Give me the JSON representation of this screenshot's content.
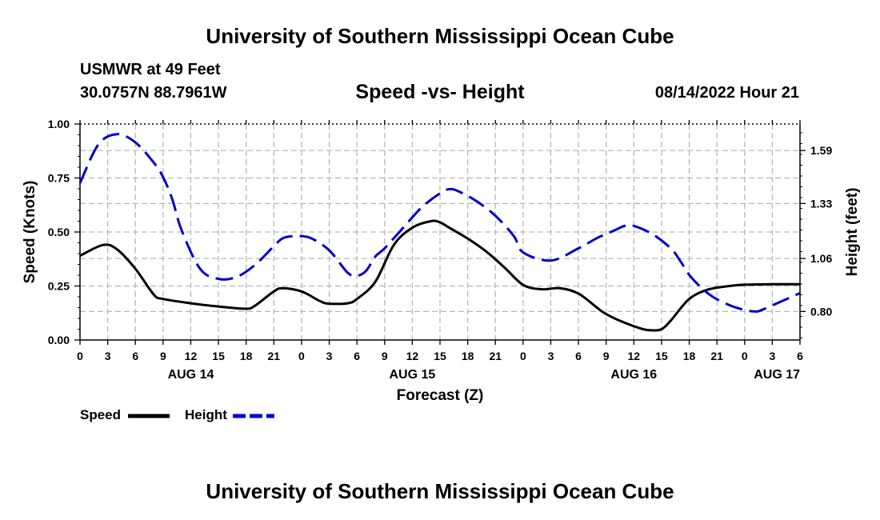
{
  "header": {
    "title": "University of Southern Mississippi Ocean Cube",
    "station": "USMWR at 49 Feet",
    "coordinates": "30.0757N  88.7961W",
    "subtitle": "Speed -vs- Height",
    "forecast_time": "08/14/2022 Hour 21"
  },
  "footer": {
    "title": "University of Southern Mississippi Ocean Cube"
  },
  "legend": {
    "speed_label": "Speed",
    "height_label": "Height"
  },
  "colors": {
    "speed": "#000000",
    "height": "#0000cc",
    "grid": "#b8b8b8"
  },
  "chart_data": {
    "type": "line",
    "title": "Speed -vs- Height",
    "xlabel": "Forecast (Z)",
    "ylabel": "Speed (Knots)",
    "y2label": "Height (feet)",
    "xlim": [
      0,
      78
    ],
    "ylim": [
      0,
      1
    ],
    "y2lim": [
      0.66,
      1.72
    ],
    "x_ticks": [
      0,
      3,
      6,
      9,
      12,
      15,
      18,
      21,
      24,
      27,
      30,
      33,
      36,
      39,
      42,
      45,
      48,
      51,
      54,
      57,
      60,
      63,
      66,
      69,
      72,
      75,
      78
    ],
    "x_tick_labels": [
      "0",
      "3",
      "6",
      "9",
      "12",
      "15",
      "18",
      "21",
      "0",
      "3",
      "6",
      "9",
      "12",
      "15",
      "18",
      "21",
      "0",
      "3",
      "6",
      "9",
      "12",
      "15",
      "18",
      "21",
      "0",
      "3",
      "6"
    ],
    "date_labels": [
      {
        "x": 12,
        "label": "AUG 14"
      },
      {
        "x": 36,
        "label": "AUG 15"
      },
      {
        "x": 60,
        "label": "AUG 16"
      },
      {
        "x": 78,
        "label": "AUG 17"
      }
    ],
    "y_ticks": [
      0,
      0.25,
      0.5,
      0.75,
      1.0
    ],
    "y_tick_labels": [
      "0.00",
      "0.25",
      "0.50",
      "0.75",
      "1.00"
    ],
    "y2_ticks": [
      0.8,
      1.06,
      1.33,
      1.59
    ],
    "y2_tick_labels": [
      "0.80",
      "1.06",
      "1.33",
      "1.59"
    ],
    "grid": true,
    "series": [
      {
        "name": "Speed",
        "axis": "left",
        "style": "solid",
        "x": [
          0,
          2.5,
          4,
          6,
          8,
          9,
          12,
          15,
          18,
          19,
          21,
          22,
          24,
          26,
          27,
          29,
          30,
          32,
          34,
          36,
          38,
          39,
          40,
          42,
          44,
          46,
          48,
          50,
          52,
          54,
          56,
          57,
          59,
          61,
          62,
          63,
          64,
          66,
          68,
          70,
          72,
          75,
          78
        ],
        "values": [
          0.39,
          0.44,
          0.42,
          0.33,
          0.21,
          0.19,
          0.17,
          0.155,
          0.145,
          0.16,
          0.225,
          0.24,
          0.225,
          0.18,
          0.168,
          0.17,
          0.19,
          0.27,
          0.44,
          0.52,
          0.55,
          0.545,
          0.52,
          0.47,
          0.41,
          0.335,
          0.255,
          0.235,
          0.24,
          0.215,
          0.15,
          0.12,
          0.08,
          0.05,
          0.045,
          0.05,
          0.09,
          0.19,
          0.233,
          0.248,
          0.256,
          0.258,
          0.258
        ]
      },
      {
        "name": "Height",
        "axis": "right",
        "style": "dashed",
        "x": [
          0,
          2,
          4,
          6,
          8,
          9,
          10,
          11,
          13,
          15,
          17,
          19,
          21,
          22,
          23.5,
          25,
          27,
          29,
          30,
          31,
          32,
          33,
          35,
          37,
          39,
          40,
          41,
          43,
          45,
          47,
          48,
          51,
          54,
          56,
          57,
          58,
          59,
          60,
          62,
          64,
          65,
          66,
          67,
          68,
          69,
          71,
          73,
          74,
          76,
          78
        ],
        "values": [
          1.43,
          1.62,
          1.67,
          1.63,
          1.53,
          1.46,
          1.35,
          1.2,
          1.01,
          0.96,
          0.97,
          1.03,
          1.12,
          1.16,
          1.17,
          1.16,
          1.1,
          0.99,
          0.975,
          1.0,
          1.07,
          1.11,
          1.21,
          1.31,
          1.38,
          1.4,
          1.39,
          1.34,
          1.27,
          1.17,
          1.09,
          1.05,
          1.11,
          1.16,
          1.18,
          1.2,
          1.22,
          1.22,
          1.18,
          1.11,
          1.05,
          0.98,
          0.93,
          0.89,
          0.86,
          0.82,
          0.8,
          0.81,
          0.85,
          0.89
        ]
      }
    ]
  }
}
